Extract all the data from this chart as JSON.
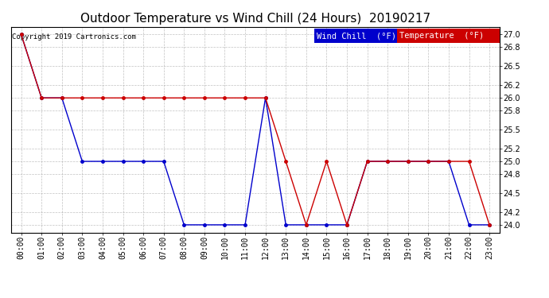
{
  "title": "Outdoor Temperature vs Wind Chill (24 Hours)  20190217",
  "copyright": "Copyright 2019 Cartronics.com",
  "hours": [
    "00:00",
    "01:00",
    "02:00",
    "03:00",
    "04:00",
    "05:00",
    "06:00",
    "07:00",
    "08:00",
    "09:00",
    "10:00",
    "11:00",
    "12:00",
    "13:00",
    "14:00",
    "15:00",
    "16:00",
    "17:00",
    "18:00",
    "19:00",
    "20:00",
    "21:00",
    "22:00",
    "23:00"
  ],
  "temperature": [
    27.0,
    26.0,
    26.0,
    26.0,
    26.0,
    26.0,
    26.0,
    26.0,
    26.0,
    26.0,
    26.0,
    26.0,
    26.0,
    25.0,
    24.0,
    25.0,
    24.0,
    25.0,
    25.0,
    25.0,
    25.0,
    25.0,
    25.0,
    24.0
  ],
  "wind_chill": [
    27.0,
    26.0,
    26.0,
    25.0,
    25.0,
    25.0,
    25.0,
    25.0,
    24.0,
    24.0,
    24.0,
    24.0,
    26.0,
    24.0,
    24.0,
    24.0,
    24.0,
    25.0,
    25.0,
    25.0,
    25.0,
    25.0,
    24.0,
    24.0
  ],
  "temp_color": "#cc0000",
  "wind_chill_color": "#0000cc",
  "background_color": "#ffffff",
  "plot_bg_color": "#ffffff",
  "grid_color": "#999999",
  "ylim_min": 23.88,
  "ylim_max": 27.12,
  "yticks": [
    24.0,
    24.2,
    24.5,
    24.8,
    25.0,
    25.2,
    25.5,
    25.8,
    26.0,
    26.2,
    26.5,
    26.8,
    27.0
  ],
  "legend_wind_bg": "#0000cc",
  "legend_temp_bg": "#cc0000",
  "legend_text_color": "#ffffff",
  "legend_wind_label": "Wind Chill  (°F)",
  "legend_temp_label": "Temperature  (°F)",
  "title_fontsize": 11,
  "copyright_fontsize": 6.5,
  "axis_fontsize": 7,
  "legend_fontsize": 7.5,
  "fig_width": 6.9,
  "fig_height": 3.75,
  "dpi": 100
}
